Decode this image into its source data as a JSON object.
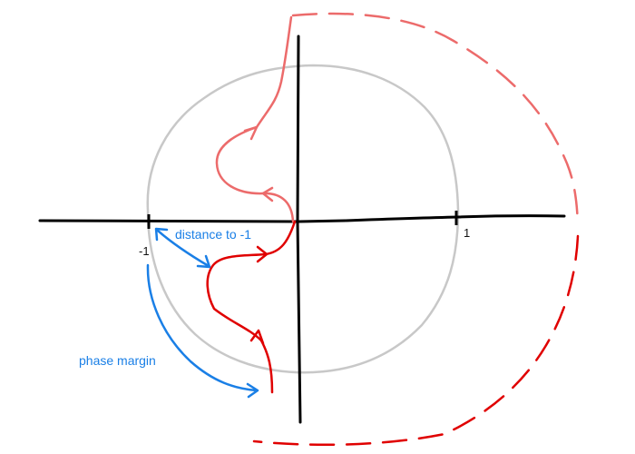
{
  "axes": {
    "tick_neg_one": "-1",
    "tick_pos_one": "1",
    "x_range": [
      -1.0,
      1.0
    ],
    "y_range": [
      -1.0,
      1.0
    ]
  },
  "annotations": {
    "distance_label": "distance to -1",
    "phase_margin_label": "phase margin"
  },
  "unit_circle": {
    "radius": 1
  },
  "colors": {
    "axes": "#000000",
    "unit_circle": "#c8c8c8",
    "positive_freq_curve": "#e00000",
    "negative_freq_curve": "#ec6b6b",
    "annotation": "#1a7fe6"
  },
  "icons": {
    "curve_arrowheads": "arrowhead-icon",
    "annotation_arrowheads": "double-arrow-icon"
  }
}
